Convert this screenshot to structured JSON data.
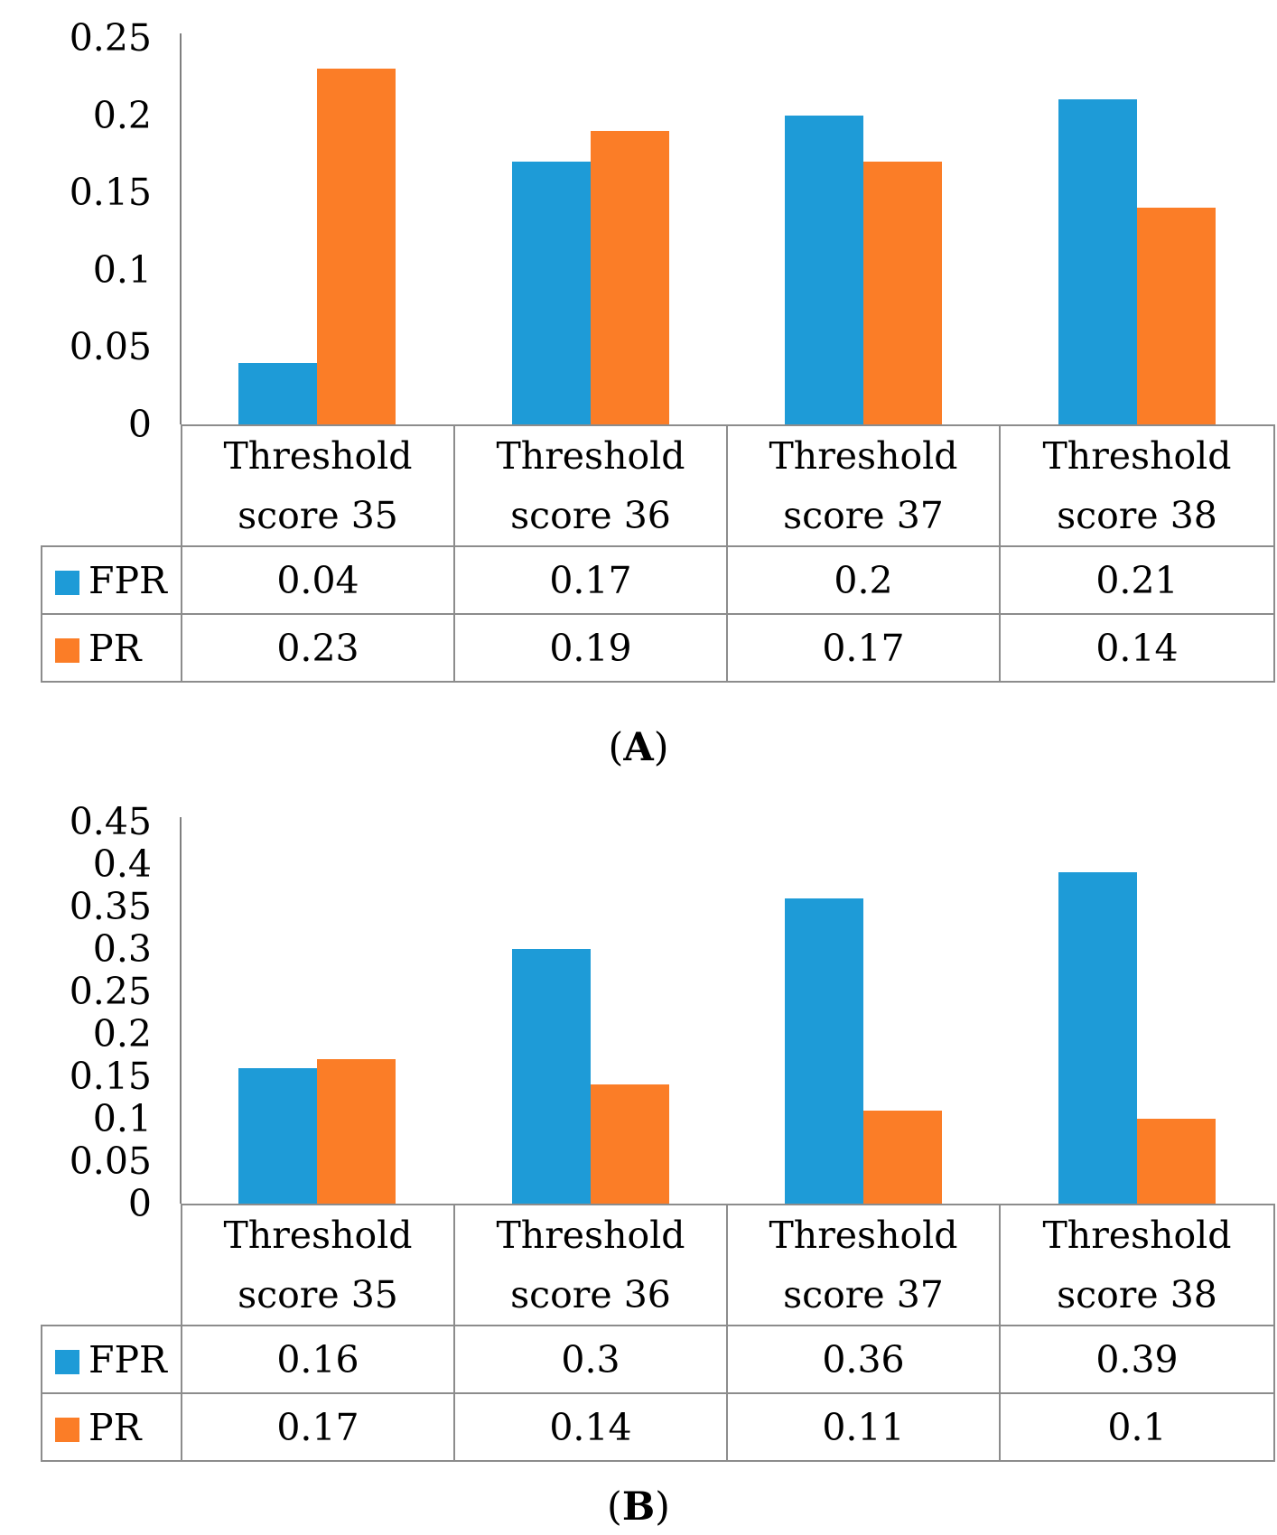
{
  "colors": {
    "fpr_blue": "#1E9BD7",
    "pr_orange": "#FB7D27",
    "axis_line": "#7f7f7f",
    "table_border": "#8c8c8c"
  },
  "chart_data": [
    {
      "type": "bar",
      "panel": "A",
      "caption": {
        "open": "(",
        "letter": "A",
        "close": ")"
      },
      "y_axis": {
        "max": 0.25,
        "min": 0,
        "ticks": [
          "0.25",
          "0.2",
          "0.15",
          "0.1",
          "0.05",
          "0"
        ]
      },
      "grid": "off",
      "legend_position": "table-left",
      "categories": [
        {
          "line1": "Threshold",
          "line2": "score 35"
        },
        {
          "line1": "Threshold",
          "line2": "score 36"
        },
        {
          "line1": "Threshold",
          "line2": "score 37"
        },
        {
          "line1": "Threshold",
          "line2": "score 38"
        }
      ],
      "series": [
        {
          "name": "FPR",
          "color_key": "fpr_blue",
          "values": [
            0.04,
            0.17,
            0.2,
            0.21
          ],
          "display": [
            "0.04",
            "0.17",
            "0.2",
            "0.21"
          ]
        },
        {
          "name": "PR",
          "color_key": "pr_orange",
          "values": [
            0.23,
            0.19,
            0.17,
            0.14
          ],
          "display": [
            "0.23",
            "0.19",
            "0.17",
            "0.14"
          ]
        }
      ]
    },
    {
      "type": "bar",
      "panel": "B",
      "caption": {
        "open": "(",
        "letter": "B",
        "close": ")"
      },
      "y_axis": {
        "max": 0.45,
        "min": 0,
        "ticks": [
          "0.45",
          "0.4",
          "0.35",
          "0.3",
          "0.25",
          "0.2",
          "0.15",
          "0.1",
          "0.05",
          "0"
        ]
      },
      "grid": "off",
      "legend_position": "table-left",
      "categories": [
        {
          "line1": "Threshold",
          "line2": "score 35"
        },
        {
          "line1": "Threshold",
          "line2": "score 36"
        },
        {
          "line1": "Threshold",
          "line2": "score 37"
        },
        {
          "line1": "Threshold",
          "line2": "score 38"
        }
      ],
      "series": [
        {
          "name": "FPR",
          "color_key": "fpr_blue",
          "values": [
            0.16,
            0.3,
            0.36,
            0.39
          ],
          "display": [
            "0.16",
            "0.3",
            "0.36",
            "0.39"
          ]
        },
        {
          "name": "PR",
          "color_key": "pr_orange",
          "values": [
            0.17,
            0.14,
            0.11,
            0.1
          ],
          "display": [
            "0.17",
            "0.14",
            "0.11",
            "0.1"
          ]
        }
      ]
    }
  ]
}
